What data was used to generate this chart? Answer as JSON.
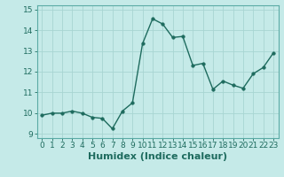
{
  "x": [
    0,
    1,
    2,
    3,
    4,
    5,
    6,
    7,
    8,
    9,
    10,
    11,
    12,
    13,
    14,
    15,
    16,
    17,
    18,
    19,
    20,
    21,
    22,
    23
  ],
  "y": [
    9.9,
    10.0,
    10.0,
    10.1,
    10.0,
    9.8,
    9.75,
    9.25,
    10.1,
    10.5,
    13.35,
    14.55,
    14.3,
    13.65,
    13.7,
    12.3,
    12.4,
    11.15,
    11.55,
    11.35,
    11.2,
    11.9,
    12.2,
    12.9
  ],
  "line_color": "#1e6b5e",
  "marker": "o",
  "markersize": 2.5,
  "linewidth": 1.0,
  "xlabel": "Humidex (Indice chaleur)",
  "xlim": [
    -0.5,
    23.5
  ],
  "ylim": [
    8.8,
    15.2
  ],
  "yticks": [
    9,
    10,
    11,
    12,
    13,
    14,
    15
  ],
  "xticks": [
    0,
    1,
    2,
    3,
    4,
    5,
    6,
    7,
    8,
    9,
    10,
    11,
    12,
    13,
    14,
    15,
    16,
    17,
    18,
    19,
    20,
    21,
    22,
    23
  ],
  "xtick_labels": [
    "0",
    "1",
    "2",
    "3",
    "4",
    "5",
    "6",
    "7",
    "8",
    "9",
    "10",
    "11",
    "12",
    "13",
    "14",
    "15",
    "16",
    "17",
    "18",
    "19",
    "20",
    "21",
    "22",
    "23"
  ],
  "bg_color": "#c5eae8",
  "grid_color": "#a8d5d2",
  "xlabel_fontsize": 8,
  "tick_fontsize": 6.5,
  "tick_color": "#1e6b5e",
  "spine_color": "#5aaba5"
}
